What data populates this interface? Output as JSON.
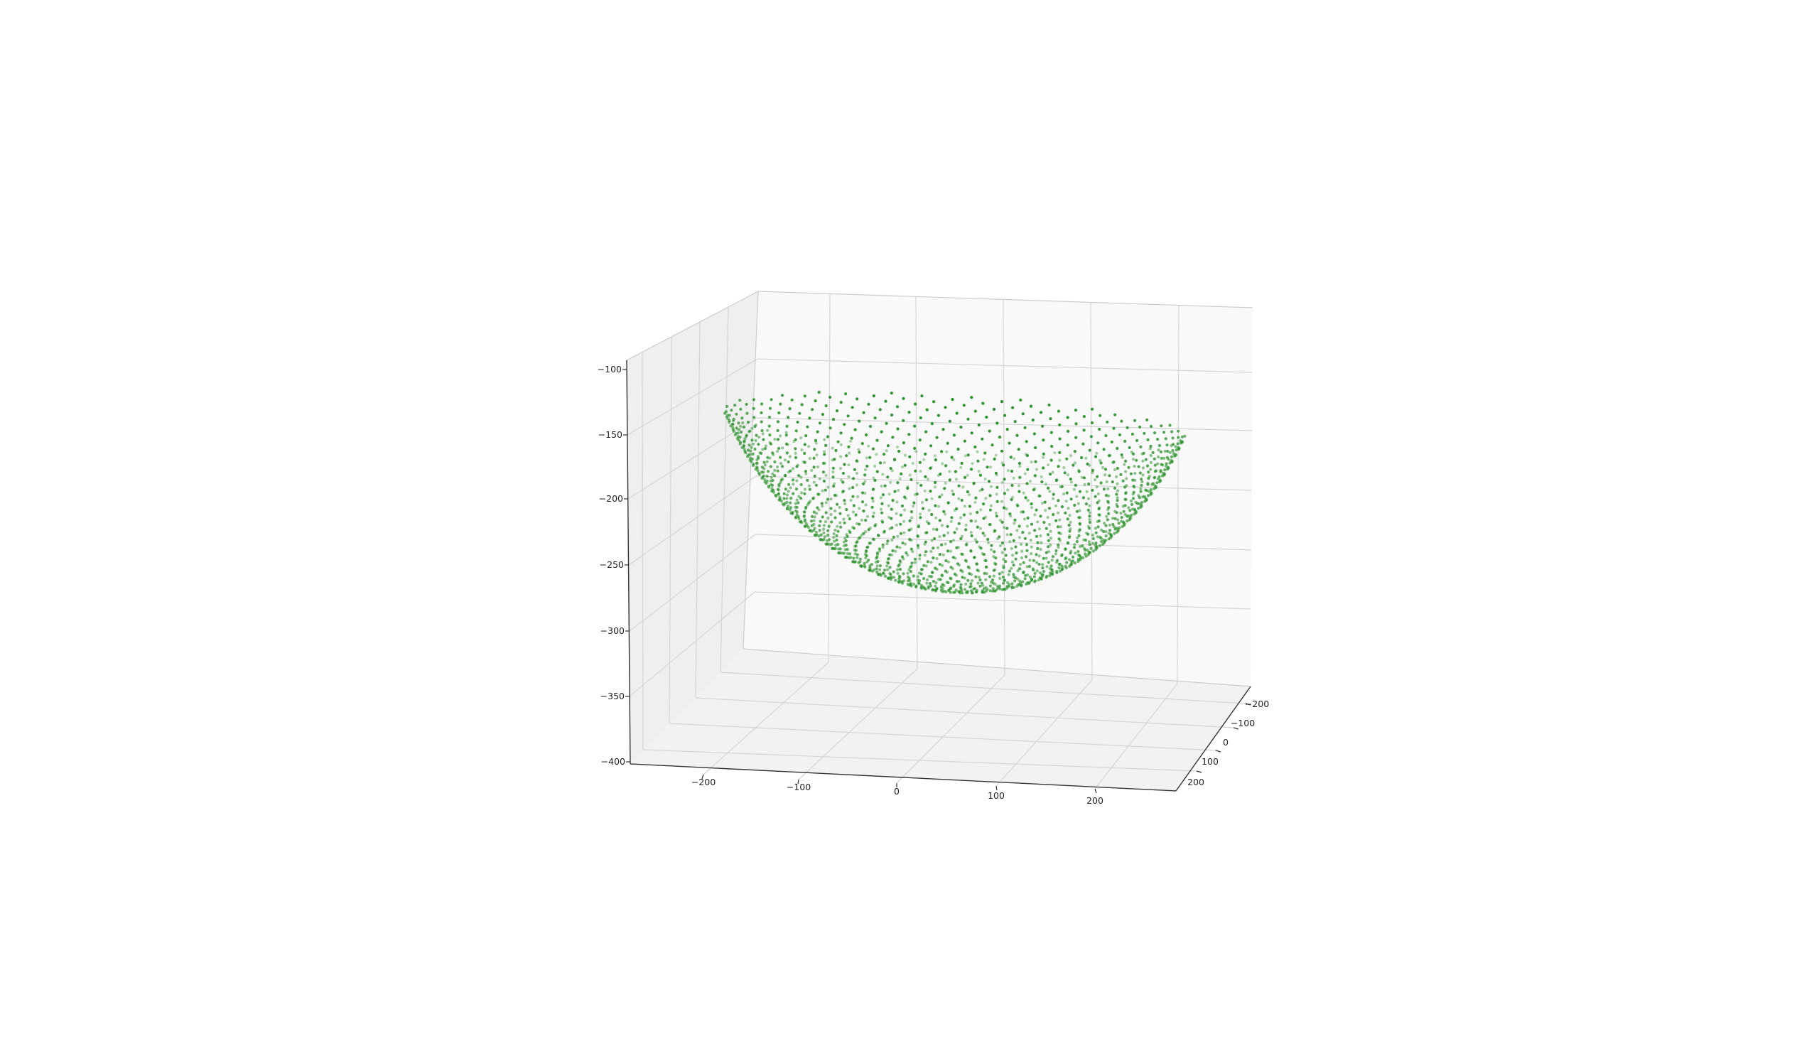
{
  "chart_data": {
    "type": "scatter3d",
    "title": "",
    "xlabel": "",
    "ylabel": "",
    "zlabel": "",
    "xlim": [
      -280,
      280
    ],
    "ylim": [
      -260,
      260
    ],
    "zlim": [
      -400,
      -100
    ],
    "x_ticks": [
      "−200",
      "−100",
      "0",
      "100",
      "200"
    ],
    "y_ticks": [
      "−200",
      "−100",
      "0",
      "100",
      "200"
    ],
    "z_ticks": [
      "−100",
      "−150",
      "−200",
      "−250",
      "−300",
      "−350",
      "−400"
    ],
    "grid": true,
    "marker_color": "#1f8c1f",
    "surface": {
      "shape": "spherical bowl",
      "sphere_radius": 250,
      "rim_z": -140,
      "bottom_z": -270
    }
  }
}
